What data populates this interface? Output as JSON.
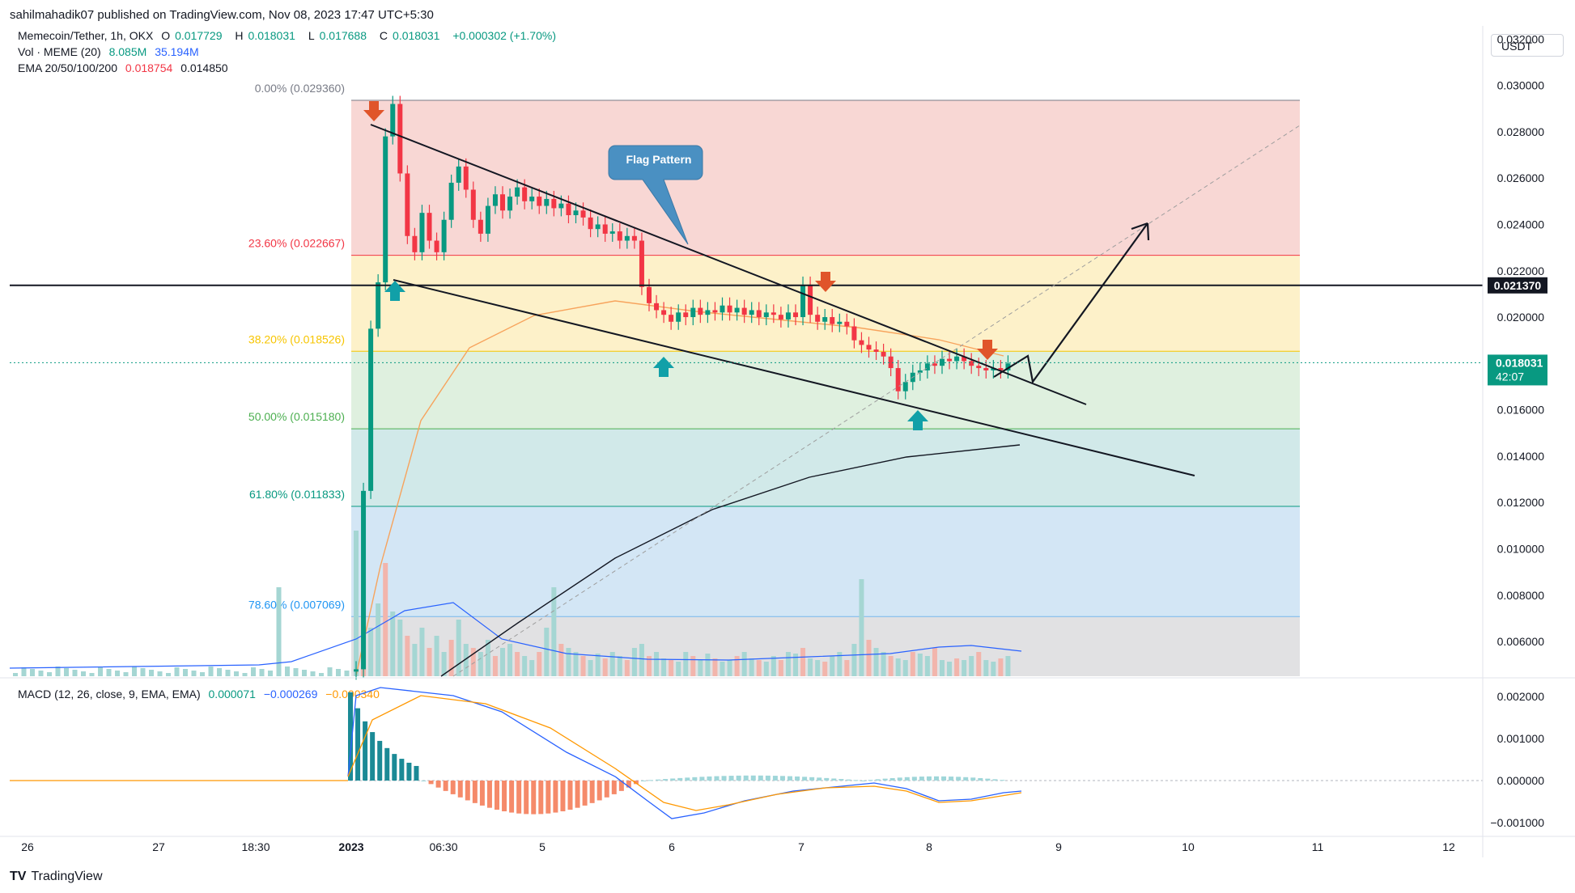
{
  "publisher_line": "sahilmahadik07 published on TradingView.com, Nov 08, 2023 17:47 UTC+5:30",
  "brand": {
    "logo": "TV",
    "name": "TradingView"
  },
  "currency_button": "USDT",
  "legend": {
    "symbol_line": {
      "title": "Memecoin/Tether, 1h, OKX",
      "open_label": "O",
      "open": "0.017729",
      "high_label": "H",
      "high": "0.018031",
      "low_label": "L",
      "low": "0.017688",
      "close_label": "C",
      "close": "0.018031",
      "change": "+0.000302 (+1.70%)"
    },
    "volume_line": {
      "label": "Vol · MEME (20)",
      "v1": "8.085M",
      "v2": "35.194M"
    },
    "ema_line": {
      "label": "EMA 20/50/100/200",
      "v1": "0.018754",
      "v2": "0.014850"
    },
    "macd_line": {
      "label": "MACD (12, 26, close, 9, EMA, EMA)",
      "v1": "0.000071",
      "v2": "−0.000269",
      "v3": "−0.000340"
    }
  },
  "colors": {
    "up": "#089981",
    "down": "#f23645",
    "ema20": "#f7a35c",
    "ema200": "#131722",
    "macd": "#2962ff",
    "signal": "#ff9800",
    "annotation_blue": "#4a90c2"
  },
  "chart_data": {
    "type": "candlestick",
    "price_axis": {
      "ticks": [
        "0.032000",
        "0.030000",
        "0.028000",
        "0.026000",
        "0.024000",
        "0.022000",
        "0.020000",
        "0.016000",
        "0.014000",
        "0.012000",
        "0.010000",
        "0.008000",
        "0.006000"
      ],
      "ylim": [
        0.0045,
        0.0325
      ]
    },
    "time_axis": {
      "ticks": [
        "26",
        "27",
        "18:30",
        "2023",
        "06:30",
        "5",
        "6",
        "7",
        "8",
        "9",
        "10",
        "11",
        "12"
      ]
    },
    "price_labels": [
      {
        "value": "0.021370",
        "style": "horizontal-line"
      },
      {
        "value": "0.018031",
        "countdown": "42:07",
        "style": "last-price"
      }
    ],
    "fib_levels": [
      {
        "label": "0.00% (0.029360)",
        "value": 0.02936,
        "color": "#787b86"
      },
      {
        "label": "23.60% (0.022667)",
        "value": 0.022667,
        "color": "#f23645"
      },
      {
        "label": "38.20% (0.018526)",
        "value": 0.018526,
        "color": "#f7c500"
      },
      {
        "label": "50.00% (0.015180)",
        "value": 0.01518,
        "color": "#4caf50"
      },
      {
        "label": "61.80% (0.011833)",
        "value": 0.011833,
        "color": "#089981"
      },
      {
        "label": "78.60% (0.007069)",
        "value": 0.007069,
        "color": "#2196f3"
      }
    ],
    "annotations": [
      {
        "text": "Flag Pattern",
        "type": "callout"
      }
    ],
    "horizontal_level": 0.02137,
    "candles_close": [
      0.0048,
      0.0125,
      0.0195,
      0.0215,
      0.0278,
      0.0292,
      0.0262,
      0.0235,
      0.0228,
      0.0245,
      0.0233,
      0.0228,
      0.0242,
      0.0258,
      0.0265,
      0.0255,
      0.0242,
      0.0236,
      0.0248,
      0.0253,
      0.0246,
      0.0252,
      0.0256,
      0.025,
      0.0252,
      0.0248,
      0.0251,
      0.0247,
      0.0249,
      0.0244,
      0.0246,
      0.0243,
      0.0238,
      0.024,
      0.0236,
      0.0237,
      0.0233,
      0.0235,
      0.0233,
      0.0213,
      0.0206,
      0.0203,
      0.0201,
      0.0198,
      0.0202,
      0.02,
      0.0204,
      0.0201,
      0.0203,
      0.0202,
      0.0205,
      0.0202,
      0.0204,
      0.0201,
      0.0203,
      0.02,
      0.0202,
      0.0201,
      0.0199,
      0.0202,
      0.02,
      0.0214,
      0.0201,
      0.0198,
      0.02,
      0.0197,
      0.0198,
      0.0196,
      0.019,
      0.0188,
      0.0186,
      0.0185,
      0.0183,
      0.0178,
      0.0168,
      0.0172,
      0.0176,
      0.0177,
      0.018,
      0.0179,
      0.0182,
      0.0181,
      0.0183,
      0.0181,
      0.0179,
      0.0178,
      0.0177,
      0.0178,
      0.0177,
      0.018
    ],
    "macd_axis": {
      "ticks": [
        "0.002000",
        "0.001000",
        "0.000000",
        "−0.001000"
      ],
      "ylim": [
        -0.00125,
        0.00225
      ]
    }
  }
}
